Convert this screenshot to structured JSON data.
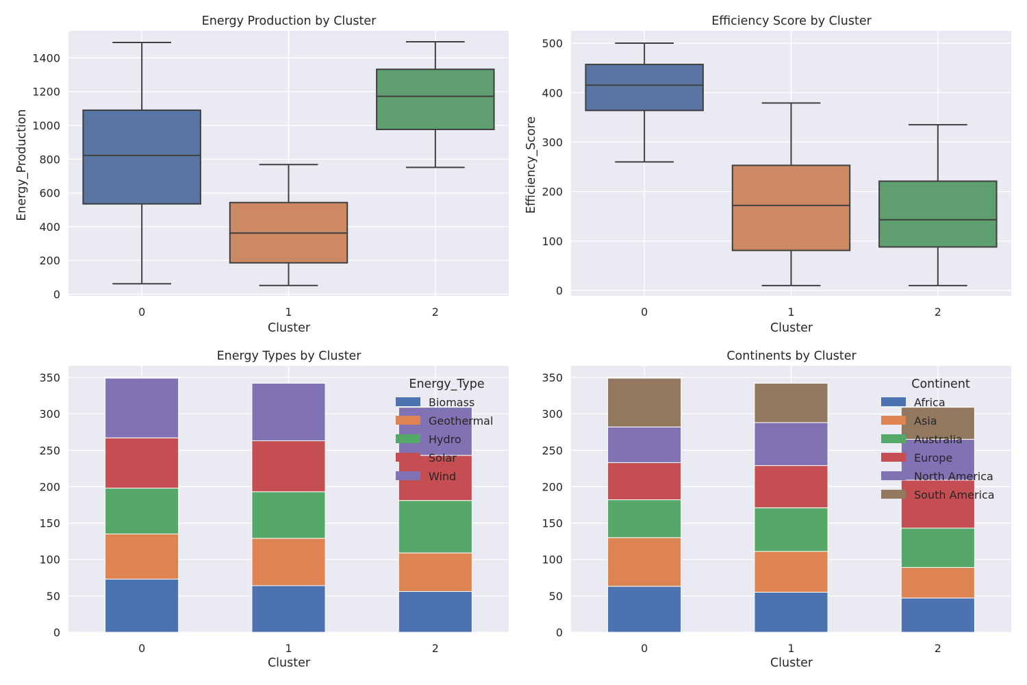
{
  "chart_data": [
    {
      "type": "box",
      "title": "Energy Production by Cluster",
      "xlabel": "Cluster",
      "ylabel": "Energy_Production",
      "categories": [
        "0",
        "1",
        "2"
      ],
      "ylim": [
        -10,
        1560
      ],
      "yticks": [
        0,
        200,
        400,
        600,
        800,
        1000,
        1200,
        1400
      ],
      "grid": true,
      "colors": [
        "#5975a4",
        "#cc8963",
        "#5f9e6e"
      ],
      "boxes": [
        {
          "whislo": 62,
          "q1": 535,
          "med": 822,
          "q3": 1090,
          "whishi": 1491
        },
        {
          "whislo": 52,
          "q1": 186,
          "med": 362,
          "q3": 543,
          "whishi": 768
        },
        {
          "whislo": 751,
          "q1": 976,
          "med": 1172,
          "q3": 1332,
          "whishi": 1495
        }
      ]
    },
    {
      "type": "box",
      "title": "Efficiency Score by Cluster",
      "xlabel": "Cluster",
      "ylabel": "Efficiency_Score",
      "categories": [
        "0",
        "1",
        "2"
      ],
      "ylim": [
        -11,
        525
      ],
      "yticks": [
        0,
        100,
        200,
        300,
        400,
        500
      ],
      "grid": true,
      "colors": [
        "#5975a4",
        "#cc8963",
        "#5f9e6e"
      ],
      "boxes": [
        {
          "whislo": 260,
          "q1": 364,
          "med": 415,
          "q3": 457,
          "whishi": 500
        },
        {
          "whislo": 10,
          "q1": 81,
          "med": 172,
          "q3": 253,
          "whishi": 379
        },
        {
          "whislo": 10,
          "q1": 88,
          "med": 143,
          "q3": 221,
          "whishi": 335
        }
      ]
    },
    {
      "type": "bar",
      "stacked": true,
      "title": "Energy Types by Cluster",
      "xlabel": "Cluster",
      "ylabel": "",
      "categories": [
        "0",
        "1",
        "2"
      ],
      "ylim": [
        0,
        366
      ],
      "yticks": [
        0,
        50,
        100,
        150,
        200,
        250,
        300,
        350
      ],
      "grid": true,
      "legend": {
        "title": "Energy_Type",
        "position": "upper right"
      },
      "series": [
        {
          "name": "Biomass",
          "color": "#4c72b0",
          "values": [
            73,
            64,
            56
          ]
        },
        {
          "name": "Geothermal",
          "color": "#dd8452",
          "values": [
            62,
            65,
            53
          ]
        },
        {
          "name": "Hydro",
          "color": "#55a868",
          "values": [
            63,
            64,
            72
          ]
        },
        {
          "name": "Solar",
          "color": "#c44e52",
          "values": [
            69,
            70,
            62
          ]
        },
        {
          "name": "Wind",
          "color": "#8172b3",
          "values": [
            82,
            79,
            66
          ]
        }
      ]
    },
    {
      "type": "bar",
      "stacked": true,
      "title": "Continents by Cluster",
      "xlabel": "Cluster",
      "ylabel": "",
      "categories": [
        "0",
        "1",
        "2"
      ],
      "ylim": [
        0,
        366
      ],
      "yticks": [
        0,
        50,
        100,
        150,
        200,
        250,
        300,
        350
      ],
      "grid": true,
      "legend": {
        "title": "Continent",
        "position": "upper right"
      },
      "series": [
        {
          "name": "Africa",
          "color": "#4c72b0",
          "values": [
            63,
            55,
            47
          ]
        },
        {
          "name": "Asia",
          "color": "#dd8452",
          "values": [
            67,
            56,
            42
          ]
        },
        {
          "name": "Australia",
          "color": "#55a868",
          "values": [
            52,
            60,
            54
          ]
        },
        {
          "name": "Europe",
          "color": "#c44e52",
          "values": [
            51,
            58,
            66
          ]
        },
        {
          "name": "North America",
          "color": "#8172b3",
          "values": [
            49,
            59,
            56
          ]
        },
        {
          "name": "South America",
          "color": "#937860",
          "values": [
            67,
            54,
            44
          ]
        }
      ]
    }
  ]
}
